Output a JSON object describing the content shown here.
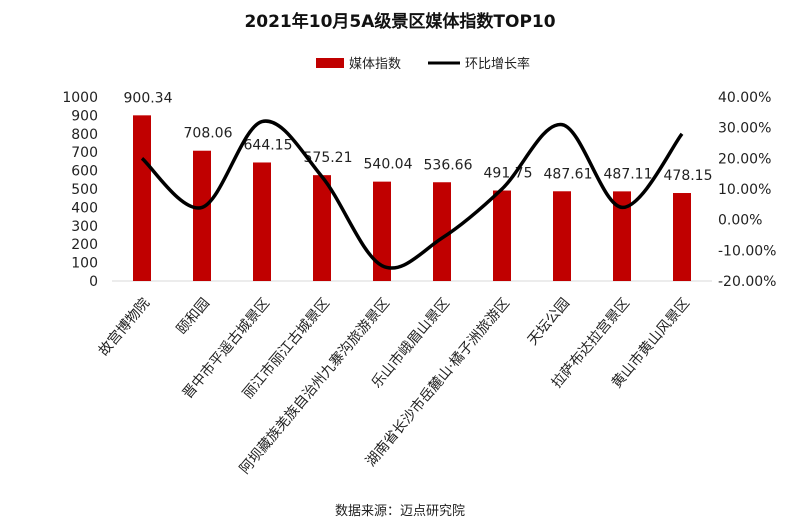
{
  "chart_data": {
    "type": "bar",
    "title": "2021年10月5A级景区媒体指数TOP10",
    "categories": [
      "故宫博物院",
      "颐和园",
      "晋中市平遥古城景区",
      "丽江市丽江古城景区",
      "阿坝藏族羌族自治州九寨沟旅游景区",
      "乐山市峨眉山景区",
      "湖南省长沙市岳麓山·橘子洲旅游区",
      "天坛公园",
      "拉萨布达拉宫景区",
      "黄山市黄山风景区"
    ],
    "series": [
      {
        "name": "媒体指数",
        "type": "bar",
        "axis": "left",
        "color": "#C00000",
        "values": [
          900.34,
          708.06,
          644.15,
          575.21,
          540.04,
          536.66,
          491.75,
          487.61,
          487.11,
          478.15
        ],
        "labels": [
          "900.34",
          "708.06",
          "644.15",
          "575.21",
          "540.04",
          "536.66",
          "491.75",
          "487.61",
          "487.11",
          "478.15"
        ]
      },
      {
        "name": "环比增长率",
        "type": "line",
        "axis": "right",
        "color": "#000000",
        "values": [
          20,
          4,
          32,
          14,
          -15,
          -6,
          10,
          31,
          4,
          28
        ]
      }
    ],
    "y_left": {
      "lim": [
        0,
        1000
      ],
      "ticks": [
        "0",
        "100",
        "200",
        "300",
        "400",
        "500",
        "600",
        "700",
        "800",
        "900",
        "1000"
      ]
    },
    "y_right": {
      "lim": [
        -20,
        40
      ],
      "unit": "%",
      "ticks": [
        "-20.00%",
        "-10.00%",
        "0.00%",
        "10.00%",
        "20.00%",
        "30.00%",
        "40.00%"
      ]
    },
    "legend": "top",
    "grid": false
  },
  "source": "数据来源：迈点研究院",
  "watermark": "迈点研究院"
}
